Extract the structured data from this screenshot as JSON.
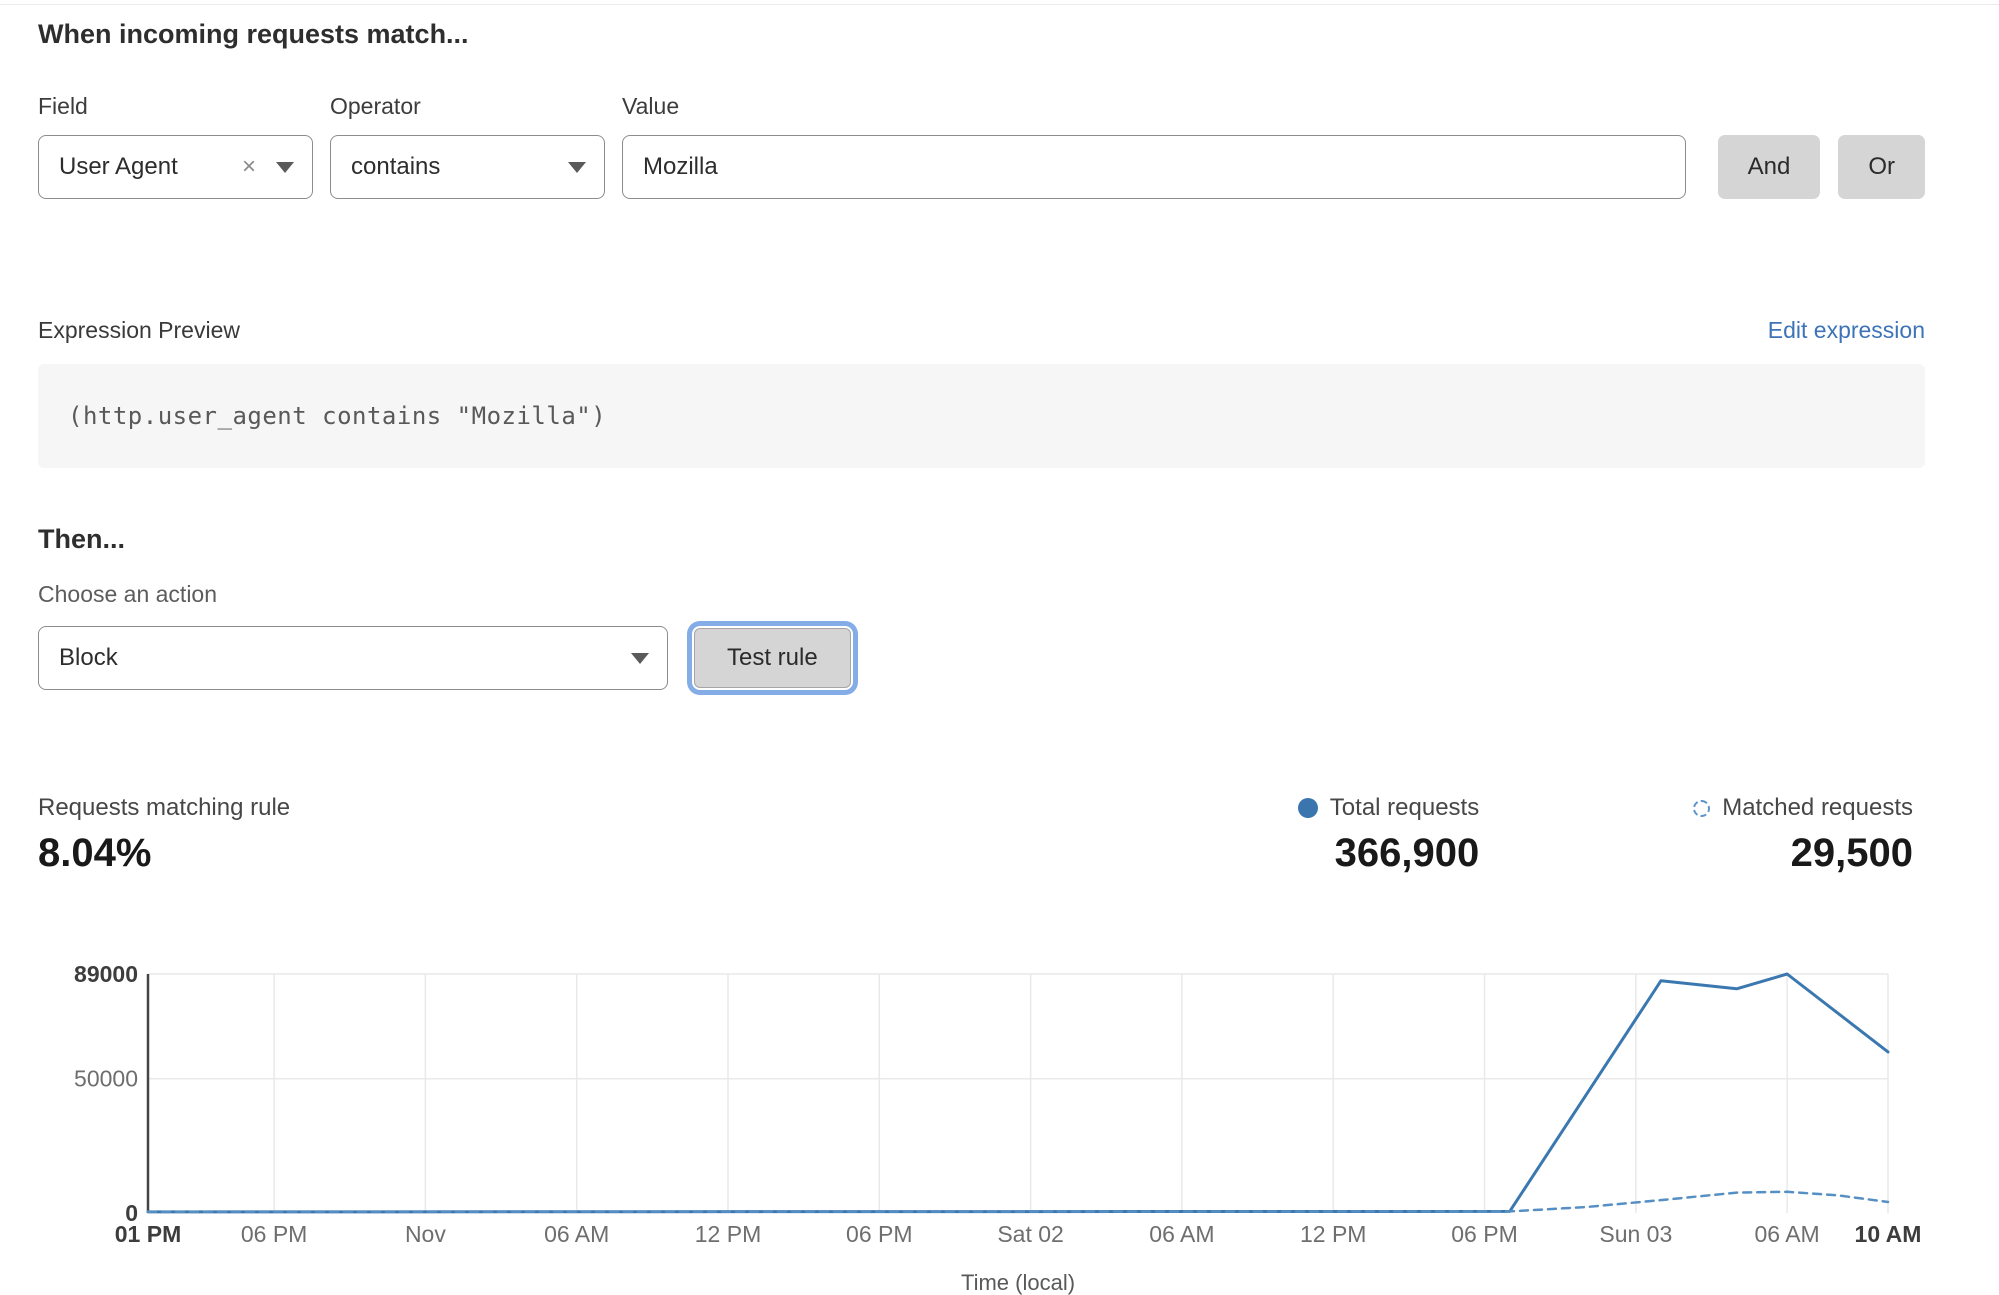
{
  "header": {
    "title": "When incoming requests match..."
  },
  "rule_builder": {
    "field_label": "Field",
    "field_value": "User Agent",
    "clear_icon": "×",
    "operator_label": "Operator",
    "operator_value": "contains",
    "value_label": "Value",
    "value_input": "Mozilla",
    "and_button": "And",
    "or_button": "Or"
  },
  "expression_preview": {
    "label": "Expression Preview",
    "edit_link": "Edit expression",
    "expression": "(http.user_agent contains \"Mozilla\")"
  },
  "action": {
    "heading": "Then...",
    "choose_label": "Choose an action",
    "selected_action": "Block",
    "test_button": "Test rule"
  },
  "stats": {
    "matching_label": "Requests matching rule",
    "matching_percent": "8.04%",
    "legend": [
      {
        "label": "Total requests",
        "value": "366,900",
        "marker": "solid-dot"
      },
      {
        "label": "Matched requests",
        "value": "29,500",
        "marker": "dashed-circle"
      }
    ]
  },
  "colors": {
    "line_blue": "#3b78b0",
    "dashed_blue": "#568fc4",
    "link_blue": "#3d74b8",
    "focus_ring": "#84ade8",
    "button_gray": "#d5d5d5",
    "grid_gray": "#e9e9e9",
    "axis_gray": "#454545"
  },
  "chart_data": {
    "type": "line",
    "title": "",
    "xlabel": "Time (local)",
    "ylabel": "",
    "grid": true,
    "legend_position": "above-right",
    "x_axis_hours_total": 69,
    "ylim": [
      0,
      89000
    ],
    "y_ticks": [
      {
        "value": 89000,
        "label": "89000",
        "bold": true
      },
      {
        "value": 50000,
        "label": "50000",
        "bold": false
      },
      {
        "value": 0,
        "label": "0",
        "bold": true
      }
    ],
    "x_ticks": [
      {
        "h": 0,
        "label": "01 PM",
        "bold": true
      },
      {
        "h": 5,
        "label": "06 PM",
        "bold": false
      },
      {
        "h": 11,
        "label": "Nov",
        "bold": false
      },
      {
        "h": 17,
        "label": "06 AM",
        "bold": false
      },
      {
        "h": 23,
        "label": "12 PM",
        "bold": false
      },
      {
        "h": 29,
        "label": "06 PM",
        "bold": false
      },
      {
        "h": 35,
        "label": "Sat 02",
        "bold": false
      },
      {
        "h": 41,
        "label": "06 AM",
        "bold": false
      },
      {
        "h": 47,
        "label": "12 PM",
        "bold": false
      },
      {
        "h": 53,
        "label": "06 PM",
        "bold": false
      },
      {
        "h": 59,
        "label": "Sun 03",
        "bold": false
      },
      {
        "h": 65,
        "label": "06 AM",
        "bold": false
      },
      {
        "h": 69,
        "label": "10 AM",
        "bold": true
      }
    ],
    "series": [
      {
        "name": "Total requests",
        "style": "solid",
        "points": [
          [
            0,
            400
          ],
          [
            54,
            600
          ],
          [
            60,
            86500
          ],
          [
            63,
            83500
          ],
          [
            65,
            89000
          ],
          [
            69,
            60000
          ]
        ]
      },
      {
        "name": "Matched requests",
        "style": "dashed",
        "points": [
          [
            0,
            500
          ],
          [
            54,
            600
          ],
          [
            57,
            2200
          ],
          [
            60,
            4800
          ],
          [
            63,
            7600
          ],
          [
            65,
            7900
          ],
          [
            67,
            6600
          ],
          [
            69,
            4100
          ]
        ]
      }
    ]
  }
}
